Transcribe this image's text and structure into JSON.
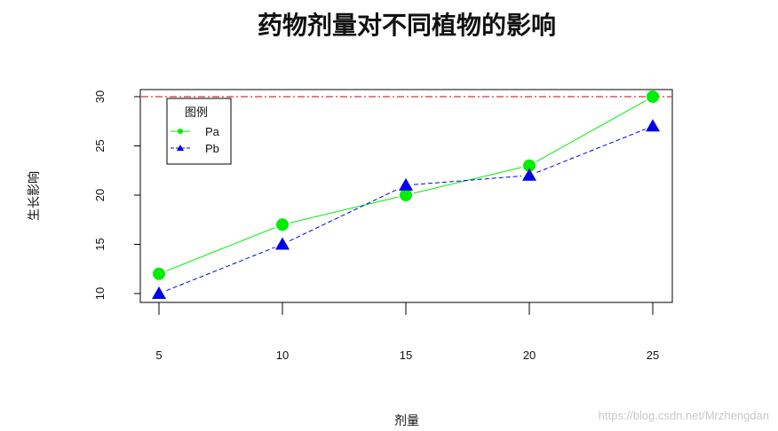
{
  "chart_data": {
    "type": "line",
    "title": "药物剂量对不同植物的影响",
    "xlabel": "剂量",
    "ylabel": "生长影响",
    "x": [
      5,
      10,
      15,
      20,
      25
    ],
    "x_ticks": [
      "5",
      "10",
      "15",
      "20",
      "25"
    ],
    "y_ticks": [
      "10",
      "15",
      "20",
      "25",
      "30"
    ],
    "ylim": [
      10,
      30
    ],
    "series": [
      {
        "name": "Pa",
        "values": [
          12,
          17,
          20,
          23,
          30
        ],
        "color": "#00ee00",
        "line": "solid",
        "marker": "circle"
      },
      {
        "name": "Pb",
        "values": [
          10,
          15,
          21,
          22,
          27
        ],
        "color": "#0000ee",
        "line": "dashed",
        "marker": "triangle"
      }
    ],
    "reference_line": {
      "y": 30,
      "color": "#cc0000",
      "line": "dashdot"
    },
    "legend": {
      "title": "图例",
      "placement": "top-left"
    },
    "grid": false
  },
  "watermark": "https://blog.csdn.net/Mrzhengdan"
}
